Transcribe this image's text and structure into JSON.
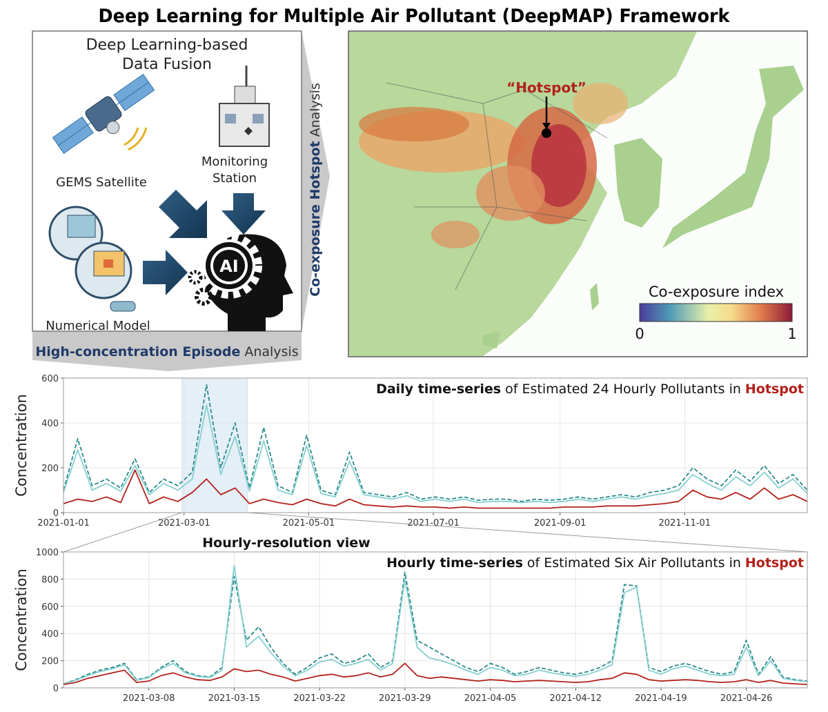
{
  "title": "Deep Learning for Multiple Air Pollutant (DeepMAP) Framework",
  "fusion": {
    "heading": [
      "Deep Learning-based",
      "Data Fusion"
    ],
    "satellite": "GEMS Satellite",
    "station": [
      "Monitoring",
      "Station"
    ],
    "model": "Numerical Model",
    "ai": "AI"
  },
  "hotspot_analysis": [
    "Co-exposure Hotspot",
    "Analysis"
  ],
  "episode_analysis": [
    "High-concentration Episode",
    "Analysis"
  ],
  "map": {
    "marker": "“Hotspot”",
    "colorbar": {
      "title": "Co-exposure index",
      "ticks": [
        0,
        1
      ]
    }
  },
  "chart_data": [
    {
      "type": "line",
      "title_parts": [
        "Daily time-series",
        "of Estimated 24 Hourly Pollutants in",
        "Hotspot"
      ],
      "ylabel": "Concentration",
      "x": [
        "2021-01-01",
        "2021-01-08",
        "2021-01-15",
        "2021-01-22",
        "2021-01-29",
        "2021-02-05",
        "2021-02-12",
        "2021-02-19",
        "2021-02-26",
        "2021-03-05",
        "2021-03-12",
        "2021-03-19",
        "2021-03-26",
        "2021-04-02",
        "2021-04-09",
        "2021-04-16",
        "2021-04-23",
        "2021-04-30",
        "2021-05-07",
        "2021-05-14",
        "2021-05-21",
        "2021-05-28",
        "2021-06-04",
        "2021-06-11",
        "2021-06-18",
        "2021-06-25",
        "2021-07-02",
        "2021-07-09",
        "2021-07-16",
        "2021-07-23",
        "2021-07-30",
        "2021-08-06",
        "2021-08-13",
        "2021-08-20",
        "2021-08-27",
        "2021-09-03",
        "2021-09-10",
        "2021-09-17",
        "2021-09-24",
        "2021-10-01",
        "2021-10-08",
        "2021-10-15",
        "2021-10-22",
        "2021-10-29",
        "2021-11-05",
        "2021-11-12",
        "2021-11-19",
        "2021-11-26",
        "2021-12-03",
        "2021-12-10",
        "2021-12-17",
        "2021-12-24",
        "2021-12-31"
      ],
      "series": [
        {
          "color": "#2b8a8a",
          "style": "dashed",
          "values": [
            100,
            330,
            120,
            150,
            110,
            240,
            90,
            150,
            120,
            180,
            570,
            200,
            400,
            110,
            380,
            120,
            90,
            345,
            100,
            80,
            270,
            90,
            80,
            70,
            90,
            60,
            70,
            60,
            70,
            55,
            60,
            60,
            50,
            60,
            55,
            60,
            70,
            60,
            70,
            80,
            70,
            90,
            100,
            120,
            200,
            150,
            120,
            190,
            140,
            210,
            130,
            170,
            100
          ]
        },
        {
          "color": "#86cfd0",
          "style": "solid",
          "values": [
            90,
            280,
            100,
            130,
            95,
            210,
            80,
            130,
            100,
            150,
            480,
            170,
            340,
            95,
            320,
            100,
            80,
            300,
            85,
            70,
            230,
            80,
            70,
            60,
            75,
            50,
            60,
            50,
            60,
            45,
            50,
            50,
            45,
            50,
            45,
            50,
            60,
            50,
            60,
            70,
            60,
            75,
            85,
            100,
            170,
            130,
            100,
            160,
            120,
            180,
            110,
            150,
            85
          ]
        },
        {
          "color": "#b3201a",
          "style": "solid",
          "values": [
            40,
            60,
            50,
            70,
            45,
            190,
            40,
            70,
            50,
            90,
            150,
            80,
            110,
            40,
            60,
            45,
            35,
            60,
            40,
            30,
            60,
            35,
            30,
            25,
            30,
            25,
            25,
            20,
            25,
            20,
            20,
            20,
            20,
            20,
            20,
            25,
            25,
            25,
            30,
            30,
            30,
            35,
            40,
            50,
            100,
            70,
            60,
            90,
            60,
            110,
            60,
            80,
            50
          ]
        }
      ],
      "highlight": [
        "2021-02-28",
        "2021-04-01"
      ],
      "xlim": [
        "2021-01-01",
        "2021-12-31"
      ],
      "xticks": [
        "2021-01-01",
        "2021-03-01",
        "2021-05-01",
        "2021-07-01",
        "2021-09-01",
        "2021-11-01"
      ],
      "ylim": [
        0,
        600
      ],
      "yticks": [
        0,
        200,
        400,
        600
      ],
      "grid": true
    },
    {
      "type": "line",
      "label": "Hourly-resolution view",
      "title_parts": [
        "Hourly time-series",
        "of Estimated Six Air Pollutants in",
        "Hotspot"
      ],
      "ylabel": "Concentration",
      "x": [
        "2021-03-01",
        "2021-03-02",
        "2021-03-03",
        "2021-03-04",
        "2021-03-05",
        "2021-03-06",
        "2021-03-07",
        "2021-03-08",
        "2021-03-09",
        "2021-03-10",
        "2021-03-11",
        "2021-03-12",
        "2021-03-13",
        "2021-03-14",
        "2021-03-15",
        "2021-03-16",
        "2021-03-17",
        "2021-03-18",
        "2021-03-19",
        "2021-03-20",
        "2021-03-21",
        "2021-03-22",
        "2021-03-23",
        "2021-03-24",
        "2021-03-25",
        "2021-03-26",
        "2021-03-27",
        "2021-03-28",
        "2021-03-29",
        "2021-03-30",
        "2021-03-31",
        "2021-04-01",
        "2021-04-02",
        "2021-04-03",
        "2021-04-04",
        "2021-04-05",
        "2021-04-06",
        "2021-04-07",
        "2021-04-08",
        "2021-04-09",
        "2021-04-10",
        "2021-04-11",
        "2021-04-12",
        "2021-04-13",
        "2021-04-14",
        "2021-04-15",
        "2021-04-16",
        "2021-04-17",
        "2021-04-18",
        "2021-04-19",
        "2021-04-20",
        "2021-04-21",
        "2021-04-22",
        "2021-04-23",
        "2021-04-24",
        "2021-04-25",
        "2021-04-26",
        "2021-04-27",
        "2021-04-28",
        "2021-04-29",
        "2021-04-30",
        "2021-05-01"
      ],
      "series": [
        {
          "color": "#2b8a8a",
          "style": "dashed",
          "values": [
            30,
            60,
            100,
            130,
            150,
            180,
            60,
            80,
            150,
            200,
            120,
            90,
            80,
            150,
            820,
            350,
            450,
            300,
            180,
            100,
            150,
            220,
            250,
            180,
            200,
            250,
            150,
            200,
            850,
            350,
            300,
            250,
            200,
            150,
            120,
            180,
            150,
            100,
            120,
            150,
            130,
            110,
            100,
            120,
            150,
            200,
            760,
            750,
            150,
            120,
            160,
            180,
            150,
            120,
            100,
            120,
            350,
            100,
            230,
            80,
            60,
            50
          ]
        },
        {
          "color": "#86cfd0",
          "style": "solid",
          "values": [
            30,
            55,
            90,
            120,
            140,
            170,
            55,
            75,
            140,
            180,
            110,
            85,
            75,
            130,
            900,
            300,
            380,
            260,
            160,
            90,
            130,
            190,
            210,
            160,
            180,
            210,
            130,
            180,
            800,
            300,
            220,
            200,
            170,
            130,
            100,
            150,
            130,
            90,
            100,
            130,
            110,
            95,
            85,
            100,
            130,
            170,
            700,
            740,
            130,
            100,
            140,
            160,
            130,
            100,
            90,
            100,
            300,
            90,
            200,
            70,
            55,
            45
          ]
        },
        {
          "color": "#b3201a",
          "style": "solid",
          "values": [
            25,
            40,
            70,
            90,
            110,
            130,
            40,
            50,
            90,
            110,
            80,
            60,
            55,
            80,
            140,
            120,
            130,
            100,
            80,
            50,
            70,
            90,
            100,
            80,
            90,
            110,
            80,
            100,
            180,
            90,
            70,
            80,
            70,
            60,
            50,
            60,
            55,
            45,
            50,
            55,
            50,
            45,
            40,
            45,
            60,
            70,
            110,
            100,
            60,
            50,
            55,
            60,
            55,
            45,
            40,
            45,
            60,
            40,
            55,
            35,
            30,
            25
          ]
        }
      ],
      "xlim": [
        "2021-03-01",
        "2021-05-01"
      ],
      "xticks": [
        "2021-03-08",
        "2021-03-15",
        "2021-03-22",
        "2021-03-29",
        "2021-04-05",
        "2021-04-12",
        "2021-04-19",
        "2021-04-26"
      ],
      "ylim": [
        0,
        1000
      ],
      "yticks": [
        0,
        200,
        400,
        600,
        800,
        1000
      ],
      "grid": true
    }
  ]
}
